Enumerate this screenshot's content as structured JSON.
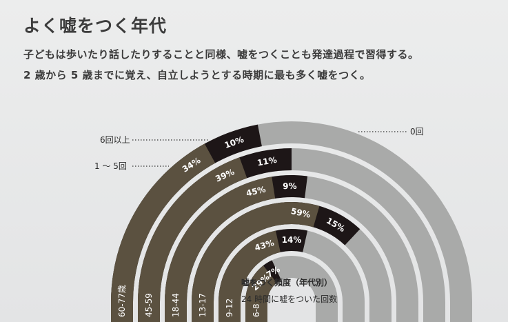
{
  "header": {
    "title": "よく嘘をつく年代",
    "subtitle_line1": "子どもは歩いたり話したりすることと同様、嘘をつくことも発達過程で習得する。",
    "subtitle_line2": "2 歳から 5 歳までに覚え、自立しようとする時期に最も多く嘘をつく。"
  },
  "chart_data": {
    "type": "semicircular-stacked-bar",
    "title": "嘘をつく頻度（年代別）",
    "subtitle": "24 時間に嘘をついた回数",
    "legend": {
      "many": "6回以上",
      "few": "1 ～ 5回",
      "zero": "0回"
    },
    "categories": [
      "60-77歳",
      "45-59",
      "18-44",
      "13-17",
      "9-12",
      "6-8"
    ],
    "series": [
      {
        "name": "1 ～ 5回",
        "values": [
          34,
          39,
          45,
          59,
          43,
          29
        ],
        "labels": [
          "34%",
          "39%",
          "45%",
          "59%",
          "43%",
          "29%"
        ]
      },
      {
        "name": "6回以上",
        "values": [
          10,
          11,
          9,
          15,
          14,
          7
        ],
        "labels": [
          "10%",
          "11%",
          "9%",
          "15%",
          "14%",
          "7%"
        ]
      },
      {
        "name": "0回",
        "values": [
          56,
          50,
          46,
          26,
          43,
          64
        ]
      }
    ],
    "colors": {
      "few": "#5b5140",
      "many": "#1d1617",
      "zero": "#a9aaa9"
    }
  }
}
